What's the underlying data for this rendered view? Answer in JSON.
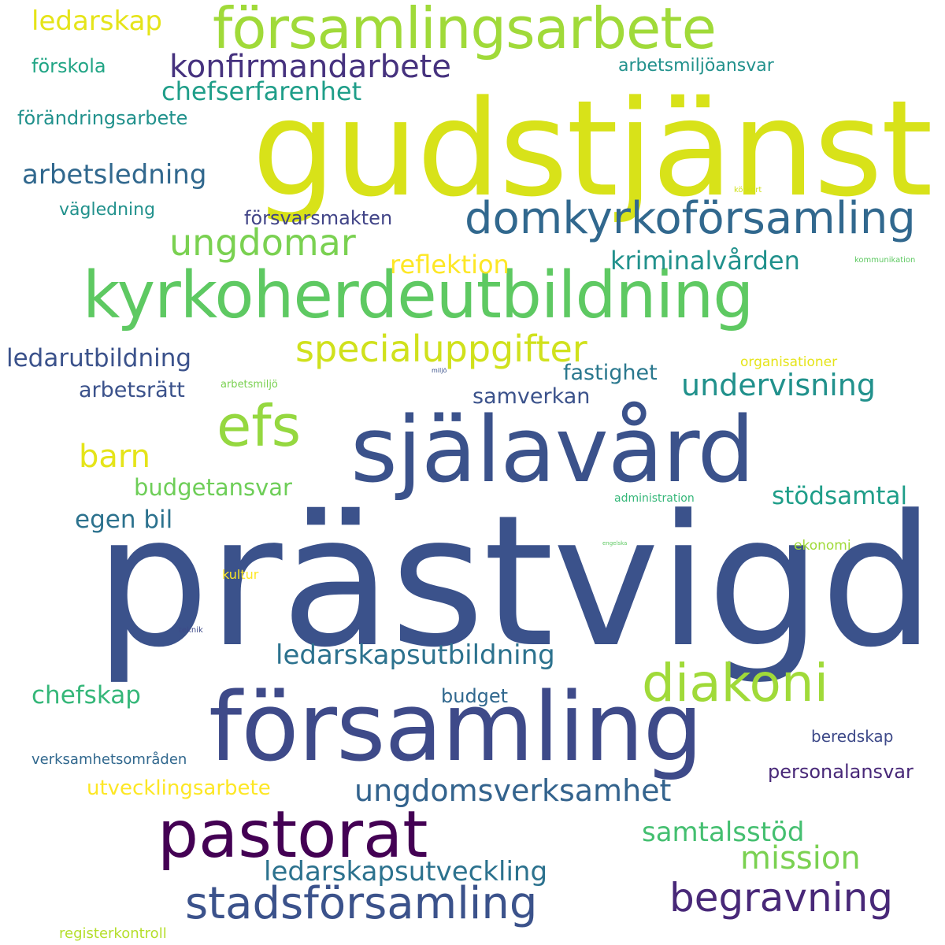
{
  "wordcloud": {
    "background": "#ffffff",
    "words": [
      {
        "text": "prästvigd",
        "color": "#3b528b"
      },
      {
        "text": "gudstjänst",
        "color": "#d8e219"
      },
      {
        "text": "församling",
        "color": "#3e4a89"
      },
      {
        "text": "själavård",
        "color": "#3b528b"
      },
      {
        "text": "kyrkoherdeutbildning",
        "color": "#5ec962"
      },
      {
        "text": "församlingsarbete",
        "color": "#a0da39"
      },
      {
        "text": "pastorat",
        "color": "#440154"
      },
      {
        "text": "efs",
        "color": "#95d840"
      },
      {
        "text": "diakoni",
        "color": "#a0da39"
      },
      {
        "text": "domkyrkoförsamling",
        "color": "#31688e"
      },
      {
        "text": "stadsförsamling",
        "color": "#3b528b"
      },
      {
        "text": "begravning",
        "color": "#482878"
      },
      {
        "text": "specialuppgifter",
        "color": "#d0e11c"
      },
      {
        "text": "ungdomar",
        "color": "#7ad151"
      },
      {
        "text": "konfirmandarbete",
        "color": "#46327e"
      },
      {
        "text": "barn",
        "color": "#e5e419"
      },
      {
        "text": "mission",
        "color": "#7ad151"
      },
      {
        "text": "undervisning",
        "color": "#21918c"
      },
      {
        "text": "ungdomsverksamhet",
        "color": "#33638d"
      },
      {
        "text": "arbetsledning",
        "color": "#31688e"
      },
      {
        "text": "ledarskap",
        "color": "#e5e419"
      },
      {
        "text": "ledarskapsutbildning",
        "color": "#2c728e"
      },
      {
        "text": "ledarskapsutveckling",
        "color": "#2c728e"
      },
      {
        "text": "samtalsstöd",
        "color": "#44bf70"
      },
      {
        "text": "chefserfarenhet",
        "color": "#1f9e89"
      },
      {
        "text": "kriminalvården",
        "color": "#21918c"
      },
      {
        "text": "reflektion",
        "color": "#fde725"
      },
      {
        "text": "ledarutbildning",
        "color": "#3b528b"
      },
      {
        "text": "stödsamtal",
        "color": "#1f9e89"
      },
      {
        "text": "chefskap",
        "color": "#35b779"
      },
      {
        "text": "egen bil",
        "color": "#2c728e"
      },
      {
        "text": "budgetansvar",
        "color": "#6ece58"
      },
      {
        "text": "arbetsrätt",
        "color": "#3b528b"
      },
      {
        "text": "fastighet",
        "color": "#2a788e"
      },
      {
        "text": "samverkan",
        "color": "#3b528b"
      },
      {
        "text": "utvecklingsarbete",
        "color": "#fde725"
      },
      {
        "text": "försvarsmakten",
        "color": "#414487"
      },
      {
        "text": "förändringsarbete",
        "color": "#21918c"
      },
      {
        "text": "budget",
        "color": "#31688e"
      },
      {
        "text": "personalansvar",
        "color": "#482878"
      },
      {
        "text": "förskola",
        "color": "#21a585"
      },
      {
        "text": "arbetsmiljöansvar",
        "color": "#21918c"
      },
      {
        "text": "vägledning",
        "color": "#21918c"
      },
      {
        "text": "beredskap",
        "color": "#3e4a89"
      },
      {
        "text": "verksamhetsområden",
        "color": "#31688e"
      },
      {
        "text": "registerkontroll",
        "color": "#b5de2b"
      },
      {
        "text": "ekonomi",
        "color": "#a0da39"
      },
      {
        "text": "organisationer",
        "color": "#e5e419"
      },
      {
        "text": "kultur",
        "color": "#fde725"
      },
      {
        "text": "administration",
        "color": "#35b779"
      },
      {
        "text": "arbetsmiljö",
        "color": "#7ad151"
      },
      {
        "text": "kommunikation",
        "color": "#5ec962"
      },
      {
        "text": "körkort",
        "color": "#d0e11c"
      },
      {
        "text": "teknik",
        "color": "#3e4a89"
      },
      {
        "text": "miljö",
        "color": "#3b528b"
      },
      {
        "text": "engelska",
        "color": "#5ec962"
      }
    ]
  }
}
